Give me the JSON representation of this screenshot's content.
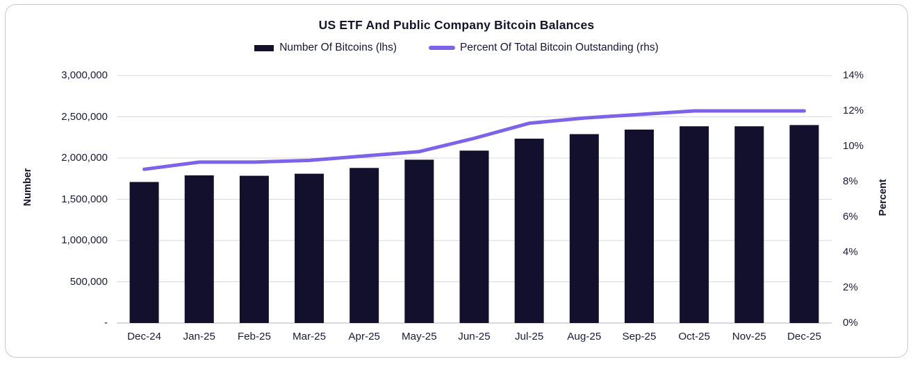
{
  "colors": {
    "bar": "#12102c",
    "line": "#7d63e9",
    "text": "#16163c",
    "gridline": "#d8d8e2",
    "baseline": "#b3b3bf",
    "card_border": "#c9c9d2",
    "background": "#ffffff"
  },
  "chart_data": {
    "type": "bar",
    "subtype": "combo-bar-line",
    "title": "US ETF And Public Company Bitcoin Balances",
    "grid": "horizontal",
    "legend_position": "top",
    "categories": [
      "Dec-24",
      "Jan-25",
      "Feb-25",
      "Mar-25",
      "Apr-25",
      "May-25",
      "Jun-25",
      "Jul-25",
      "Aug-25",
      "Sep-25",
      "Oct-25",
      "Nov-25",
      "Dec-25"
    ],
    "series": [
      {
        "name": "Number Of Bitcoins (lhs)",
        "type": "bar",
        "axis": "left",
        "color": "#12102c",
        "values": [
          1710000,
          1790000,
          1785000,
          1810000,
          1880000,
          1980000,
          2090000,
          2235000,
          2290000,
          2345000,
          2385000,
          2385000,
          2400000
        ]
      },
      {
        "name": "Percent Of Total Bitcoin Outstanding (rhs)",
        "type": "line",
        "axis": "right",
        "color": "#7d63e9",
        "values": [
          8.7,
          9.1,
          9.1,
          9.2,
          9.45,
          9.7,
          10.45,
          11.3,
          11.6,
          11.8,
          12.0,
          12.0,
          12.0
        ]
      }
    ],
    "left_axis": {
      "label": "Number",
      "min": 0,
      "max": 3000000,
      "tick_step": 500000,
      "tick_labels": [
        "-",
        "500,000",
        "1,000,000",
        "1,500,000",
        "2,000,000",
        "2,500,000",
        "3,000,000"
      ]
    },
    "right_axis": {
      "label": "Percent",
      "min": 0,
      "max": 14,
      "tick_step": 2,
      "tick_labels": [
        "0%",
        "2%",
        "4%",
        "6%",
        "8%",
        "10%",
        "12%",
        "14%"
      ]
    }
  }
}
